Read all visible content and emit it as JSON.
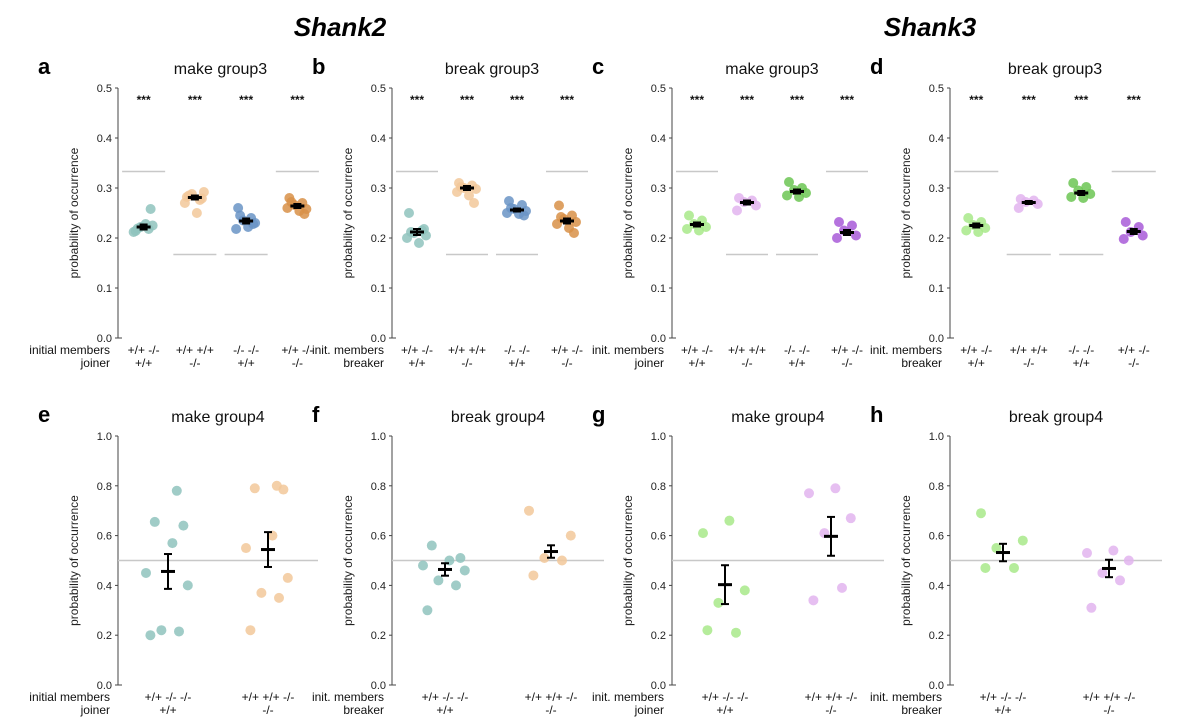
{
  "genes": [
    "Shank2",
    "Shank3"
  ],
  "colors": {
    "teal": "#8fc3bd",
    "peach": "#f2c89a",
    "blue": "#6a94c6",
    "orange": "#d89048",
    "lightgreen": "#a8e98a",
    "lavender": "#e2b4ef",
    "green": "#6cc654",
    "purple": "#a85ad8",
    "refline": "#c8c8c8"
  },
  "chart_data": [
    {
      "label": "a",
      "title": "make group3",
      "type": "scatter",
      "ylabel": "probability of occurrence",
      "ylim": [
        0,
        0.5
      ],
      "yticks": [
        "0.0",
        "0.1",
        "0.2",
        "0.3",
        "0.4",
        "0.5"
      ],
      "cond_rows": [
        {
          "name": "initial members",
          "values": [
            "+/+ -/-",
            "+/+ +/+",
            "-/- -/-",
            "+/+ -/-"
          ]
        },
        {
          "name": "joiner",
          "values": [
            "+/+",
            "-/-",
            "+/+",
            "-/-"
          ]
        }
      ],
      "significance": [
        "***",
        "***",
        "***",
        "***"
      ],
      "series": [
        {
          "color": "teal",
          "points": [
            0.214,
            0.218,
            0.222,
            0.225,
            0.212,
            0.228,
            0.258,
            0.219
          ],
          "mean": 0.222,
          "sem": 0.005,
          "ref": 0.333
        },
        {
          "color": "peach",
          "points": [
            0.282,
            0.276,
            0.288,
            0.292,
            0.27,
            0.25,
            0.279,
            0.285
          ],
          "mean": 0.281,
          "sem": 0.004,
          "ref": 0.167
        },
        {
          "color": "blue",
          "points": [
            0.26,
            0.24,
            0.235,
            0.23,
            0.218,
            0.222,
            0.228,
            0.245
          ],
          "mean": 0.234,
          "sem": 0.005,
          "ref": 0.167
        },
        {
          "color": "orange",
          "points": [
            0.28,
            0.27,
            0.266,
            0.258,
            0.26,
            0.254,
            0.248,
            0.272
          ],
          "mean": 0.264,
          "sem": 0.004,
          "ref": 0.333
        }
      ]
    },
    {
      "label": "b",
      "title": "break group3",
      "type": "scatter",
      "ylabel": "probability of occurrence",
      "ylim": [
        0,
        0.5
      ],
      "yticks": [
        "0.0",
        "0.1",
        "0.2",
        "0.3",
        "0.4",
        "0.5"
      ],
      "cond_rows": [
        {
          "name": "init. members",
          "values": [
            "+/+ -/-",
            "+/+ +/+",
            "-/- -/-",
            "+/+ -/-"
          ]
        },
        {
          "name": "breaker",
          "values": [
            "+/+",
            "-/-",
            "+/+",
            "-/-"
          ]
        }
      ],
      "significance": [
        "***",
        "***",
        "***",
        "***"
      ],
      "series": [
        {
          "color": "teal",
          "points": [
            0.25,
            0.215,
            0.21,
            0.205,
            0.2,
            0.19,
            0.218,
            0.212
          ],
          "mean": 0.212,
          "sem": 0.006,
          "ref": 0.333
        },
        {
          "color": "peach",
          "points": [
            0.31,
            0.305,
            0.3,
            0.298,
            0.292,
            0.285,
            0.27,
            0.302
          ],
          "mean": 0.3,
          "sem": 0.004,
          "ref": 0.167
        },
        {
          "color": "blue",
          "points": [
            0.274,
            0.266,
            0.258,
            0.254,
            0.25,
            0.248,
            0.245,
            0.26
          ],
          "mean": 0.256,
          "sem": 0.003,
          "ref": 0.167
        },
        {
          "color": "orange",
          "points": [
            0.265,
            0.245,
            0.238,
            0.232,
            0.228,
            0.22,
            0.21,
            0.242
          ],
          "mean": 0.234,
          "sem": 0.005,
          "ref": 0.333
        }
      ]
    },
    {
      "label": "c",
      "title": "make group3",
      "type": "scatter",
      "ylabel": "probability of occurrence",
      "ylim": [
        0,
        0.5
      ],
      "yticks": [
        "0.0",
        "0.1",
        "0.2",
        "0.3",
        "0.4",
        "0.5"
      ],
      "cond_rows": [
        {
          "name": "init. members",
          "values": [
            "+/+ -/-",
            "+/+ +/+",
            "-/- -/-",
            "+/+ -/-"
          ]
        },
        {
          "name": "joiner",
          "values": [
            "+/+",
            "-/-",
            "+/+",
            "-/-"
          ]
        }
      ],
      "significance": [
        "***",
        "***",
        "***",
        "***"
      ],
      "series": [
        {
          "color": "lightgreen",
          "points": [
            0.245,
            0.235,
            0.228,
            0.222,
            0.218,
            0.215
          ],
          "mean": 0.227,
          "sem": 0.004,
          "ref": 0.333
        },
        {
          "color": "lavender",
          "points": [
            0.28,
            0.275,
            0.272,
            0.265,
            0.255
          ],
          "mean": 0.271,
          "sem": 0.004,
          "ref": 0.167
        },
        {
          "color": "green",
          "points": [
            0.312,
            0.3,
            0.296,
            0.29,
            0.285,
            0.282
          ],
          "mean": 0.293,
          "sem": 0.004,
          "ref": 0.167
        },
        {
          "color": "purple",
          "points": [
            0.232,
            0.225,
            0.215,
            0.205,
            0.2
          ],
          "mean": 0.211,
          "sem": 0.005,
          "ref": 0.333
        }
      ]
    },
    {
      "label": "d",
      "title": "break group3",
      "type": "scatter",
      "ylabel": "probability of occurrence",
      "ylim": [
        0,
        0.5
      ],
      "yticks": [
        "0.0",
        "0.1",
        "0.2",
        "0.3",
        "0.4",
        "0.5"
      ],
      "cond_rows": [
        {
          "name": "init. members",
          "values": [
            "+/+ -/-",
            "+/+ +/+",
            "-/- -/-",
            "+/+ -/-"
          ]
        },
        {
          "name": "breaker",
          "values": [
            "+/+",
            "-/-",
            "+/+",
            "-/-"
          ]
        }
      ],
      "significance": [
        "***",
        "***",
        "***",
        "***"
      ],
      "series": [
        {
          "color": "lightgreen",
          "points": [
            0.24,
            0.232,
            0.226,
            0.22,
            0.215,
            0.212
          ],
          "mean": 0.225,
          "sem": 0.004,
          "ref": 0.333
        },
        {
          "color": "lavender",
          "points": [
            0.278,
            0.275,
            0.272,
            0.268,
            0.26
          ],
          "mean": 0.271,
          "sem": 0.003,
          "ref": 0.167
        },
        {
          "color": "green",
          "points": [
            0.31,
            0.302,
            0.295,
            0.288,
            0.282,
            0.28
          ],
          "mean": 0.29,
          "sem": 0.004,
          "ref": 0.167
        },
        {
          "color": "purple",
          "points": [
            0.232,
            0.222,
            0.212,
            0.205,
            0.198
          ],
          "mean": 0.213,
          "sem": 0.005,
          "ref": 0.333
        }
      ]
    },
    {
      "label": "e",
      "title": "make group4",
      "type": "scatter",
      "ylabel": "probability of occurrence",
      "ylim": [
        0,
        1.0
      ],
      "yticks": [
        "0.0",
        "0.2",
        "0.4",
        "0.6",
        "0.8",
        "1.0"
      ],
      "cond_rows": [
        {
          "name": "initial members",
          "values": [
            "+/+ -/- -/-",
            "+/+ +/+ -/-"
          ]
        },
        {
          "name": "joiner",
          "values": [
            "+/+",
            "-/-"
          ]
        }
      ],
      "significance": [],
      "series": [
        {
          "color": "teal",
          "points": [
            0.2,
            0.215,
            0.22,
            0.4,
            0.45,
            0.57,
            0.64,
            0.655,
            0.78
          ],
          "mean": 0.456,
          "sem": 0.07,
          "ref": 0.5
        },
        {
          "color": "peach",
          "points": [
            0.22,
            0.35,
            0.37,
            0.43,
            0.55,
            0.6,
            0.785,
            0.79,
            0.8
          ],
          "mean": 0.544,
          "sem": 0.07,
          "ref": 0.5
        }
      ]
    },
    {
      "label": "f",
      "title": "break group4",
      "type": "scatter",
      "ylabel": "probability of occurrence",
      "ylim": [
        0,
        1.0
      ],
      "yticks": [
        "0.0",
        "0.2",
        "0.4",
        "0.6",
        "0.8",
        "1.0"
      ],
      "cond_rows": [
        {
          "name": "init. members",
          "values": [
            "+/+ -/- -/-",
            "+/+ +/+ -/-"
          ]
        },
        {
          "name": "breaker",
          "values": [
            "+/+",
            "-/-"
          ]
        }
      ],
      "significance": [],
      "series": [
        {
          "color": "teal",
          "points": [
            0.3,
            0.4,
            0.42,
            0.46,
            0.48,
            0.5,
            0.51,
            0.56
          ],
          "mean": 0.464,
          "sem": 0.025,
          "ref": 0.5
        },
        {
          "color": "peach",
          "points": [
            0.44,
            0.5,
            0.51,
            0.6,
            0.7
          ],
          "mean": 0.536,
          "sem": 0.025,
          "ref": 0.5
        }
      ]
    },
    {
      "label": "g",
      "title": "make group4",
      "type": "scatter",
      "ylabel": "probability of occurrence",
      "ylim": [
        0,
        1.0
      ],
      "yticks": [
        "0.0",
        "0.2",
        "0.4",
        "0.6",
        "0.8",
        "1.0"
      ],
      "cond_rows": [
        {
          "name": "init. members",
          "values": [
            "+/+ -/- -/-",
            "+/+ +/+ -/-"
          ]
        },
        {
          "name": "joiner",
          "values": [
            "+/+",
            "-/-"
          ]
        }
      ],
      "significance": [],
      "series": [
        {
          "color": "lightgreen",
          "points": [
            0.22,
            0.21,
            0.33,
            0.38,
            0.61,
            0.66
          ],
          "mean": 0.403,
          "sem": 0.078,
          "ref": 0.5
        },
        {
          "color": "lavender",
          "points": [
            0.34,
            0.39,
            0.61,
            0.67,
            0.77,
            0.79
          ],
          "mean": 0.597,
          "sem": 0.078,
          "ref": 0.5
        }
      ]
    },
    {
      "label": "h",
      "title": "break group4",
      "type": "scatter",
      "ylabel": "probability of occurrence",
      "ylim": [
        0,
        1.0
      ],
      "yticks": [
        "0.0",
        "0.2",
        "0.4",
        "0.6",
        "0.8",
        "1.0"
      ],
      "cond_rows": [
        {
          "name": "init. members",
          "values": [
            "+/+ -/- -/-",
            "+/+ +/+ -/-"
          ]
        },
        {
          "name": "breaker",
          "values": [
            "+/+",
            "-/-"
          ]
        }
      ],
      "significance": [],
      "series": [
        {
          "color": "lightgreen",
          "points": [
            0.47,
            0.47,
            0.55,
            0.58,
            0.69
          ],
          "mean": 0.532,
          "sem": 0.035,
          "ref": 0.5
        },
        {
          "color": "lavender",
          "points": [
            0.31,
            0.42,
            0.45,
            0.5,
            0.53,
            0.54
          ],
          "mean": 0.468,
          "sem": 0.035,
          "ref": 0.5
        }
      ]
    }
  ]
}
